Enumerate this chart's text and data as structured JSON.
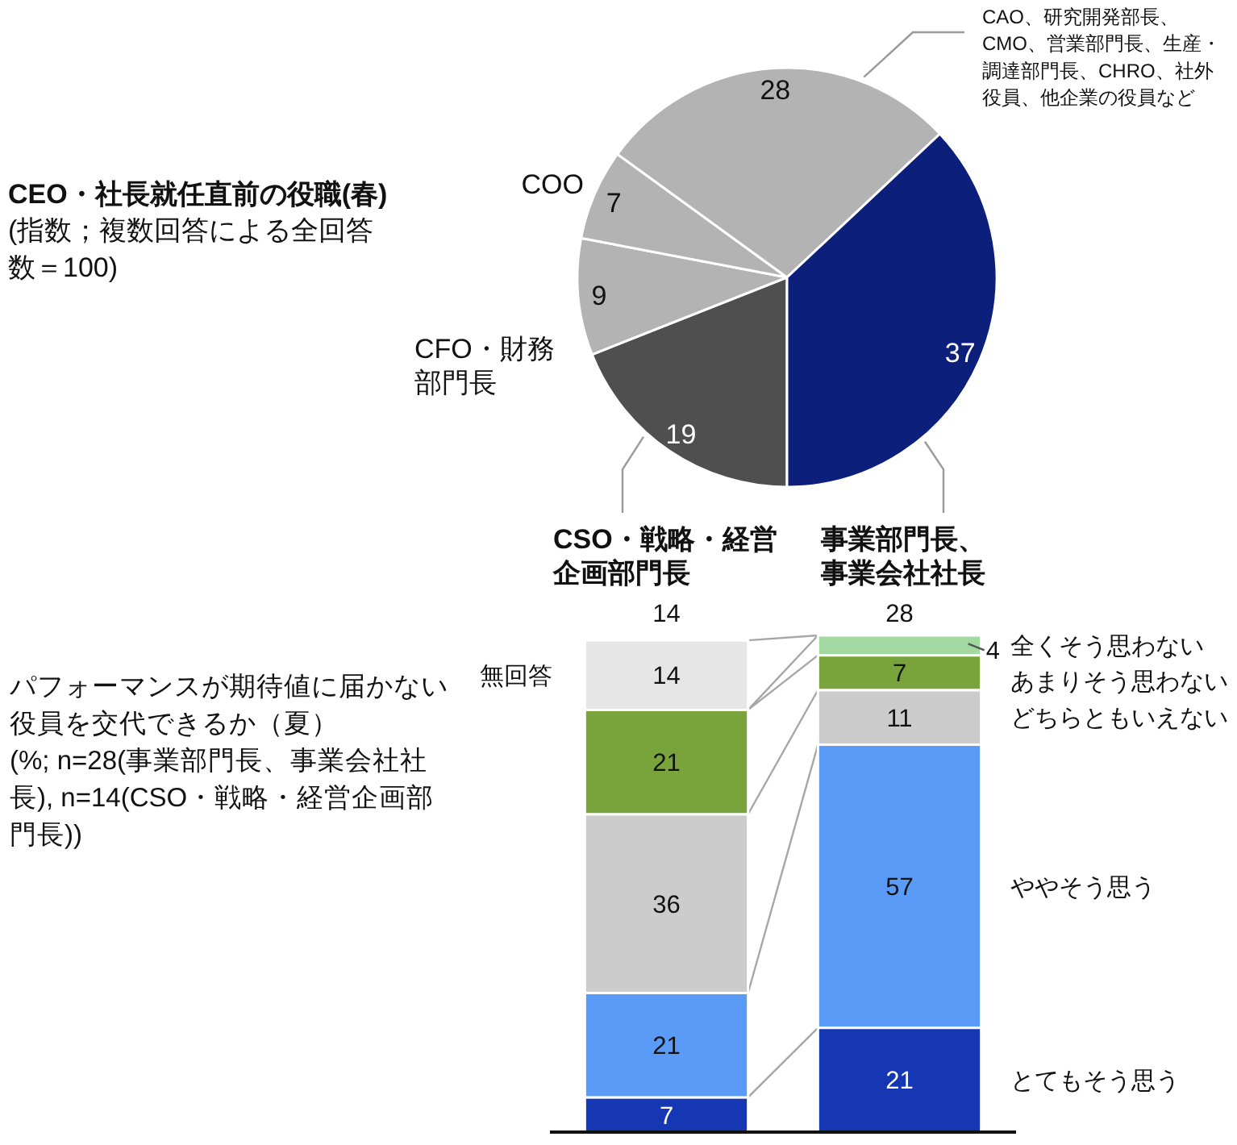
{
  "chart_data": [
    {
      "type": "pie",
      "title": "CEO・社長就任直前の役職(春)",
      "subtitle": "(指数；複数回答による全回答数＝100)",
      "categories": [
        "CSO・戦略・経営企画部門長",
        "CFO・財務部門長",
        "COO",
        "CAO、研究開発部長、CMO、営業部門長、生産・調達部門長、CHRO、社外役員、他企業の役員など",
        "事業部門長、事業会社社長"
      ],
      "values": [
        19,
        9,
        7,
        28,
        37
      ],
      "colors": [
        "#4f4f4f",
        "#b3b3b3",
        "#b3b3b3",
        "#b3b3b3",
        "#0c1f7a"
      ],
      "data_labels": true
    },
    {
      "type": "bar",
      "stacked": true,
      "title": "パフォーマンスが期待値に届かない役員を交代できるか（夏）",
      "subtitle": "(%; n=28(事業部門長、事業会社社長), n=14(CSO・戦略・経営企画部門長))",
      "categories": [
        "14",
        "28"
      ],
      "series": [
        {
          "name": "とてもそう思う",
          "color": "#1537b4",
          "values": [
            7,
            21
          ]
        },
        {
          "name": "ややそう思う",
          "color": "#5b9bf8",
          "values": [
            21,
            57
          ]
        },
        {
          "name": "どちらともいえない",
          "color": "#cccccc",
          "values": [
            36,
            11
          ]
        },
        {
          "name": "あまりそう思わない",
          "color": "#79a33b",
          "values": [
            21,
            7
          ]
        },
        {
          "name": "全くそう思わない",
          "color": "#a2d9a0",
          "values": [
            null,
            4
          ]
        },
        {
          "name": "無回答",
          "color": "#e6e6e6",
          "values": [
            14,
            null
          ]
        }
      ],
      "data_labels": true
    }
  ]
}
